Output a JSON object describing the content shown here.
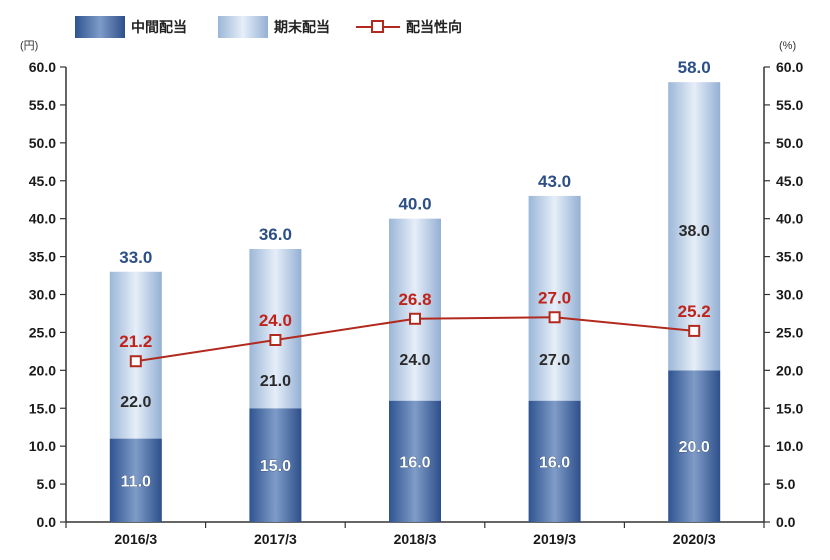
{
  "chart_data": {
    "type": "bar",
    "stacked": true,
    "categories": [
      "2016/3",
      "2017/3",
      "2018/3",
      "2019/3",
      "2020/3"
    ],
    "series": [
      {
        "name": "中間配当",
        "values": [
          11.0,
          15.0,
          16.0,
          16.0,
          20.0
        ],
        "color": "#3f64a1"
      },
      {
        "name": "期末配当",
        "values": [
          22.0,
          21.0,
          24.0,
          27.0,
          38.0
        ],
        "color": "#a8c2de"
      }
    ],
    "totals": [
      33.0,
      36.0,
      40.0,
      43.0,
      58.0
    ],
    "line_series": {
      "name": "配当性向",
      "values": [
        21.2,
        24.0,
        26.8,
        27.0,
        25.2
      ],
      "color": "#b22a1e",
      "axis": "right"
    },
    "y_left": {
      "unit": "(円)",
      "ylim": [
        0,
        60
      ],
      "ticks": [
        "0.0",
        "5.0",
        "10.0",
        "15.0",
        "20.0",
        "25.0",
        "30.0",
        "35.0",
        "40.0",
        "45.0",
        "50.0",
        "55.0",
        "60.0"
      ]
    },
    "y_right": {
      "unit": "(%)",
      "ylim": [
        0,
        60
      ],
      "ticks": [
        "0.0",
        "5.0",
        "10.0",
        "15.0",
        "20.0",
        "25.0",
        "30.0",
        "35.0",
        "40.0",
        "45.0",
        "50.0",
        "55.0",
        "60.0"
      ]
    },
    "grid": false,
    "legend_placement": "top-left"
  },
  "legend": {
    "interim_label": "中間配当",
    "yearend_label": "期末配当",
    "payout_label": "配当性向"
  }
}
